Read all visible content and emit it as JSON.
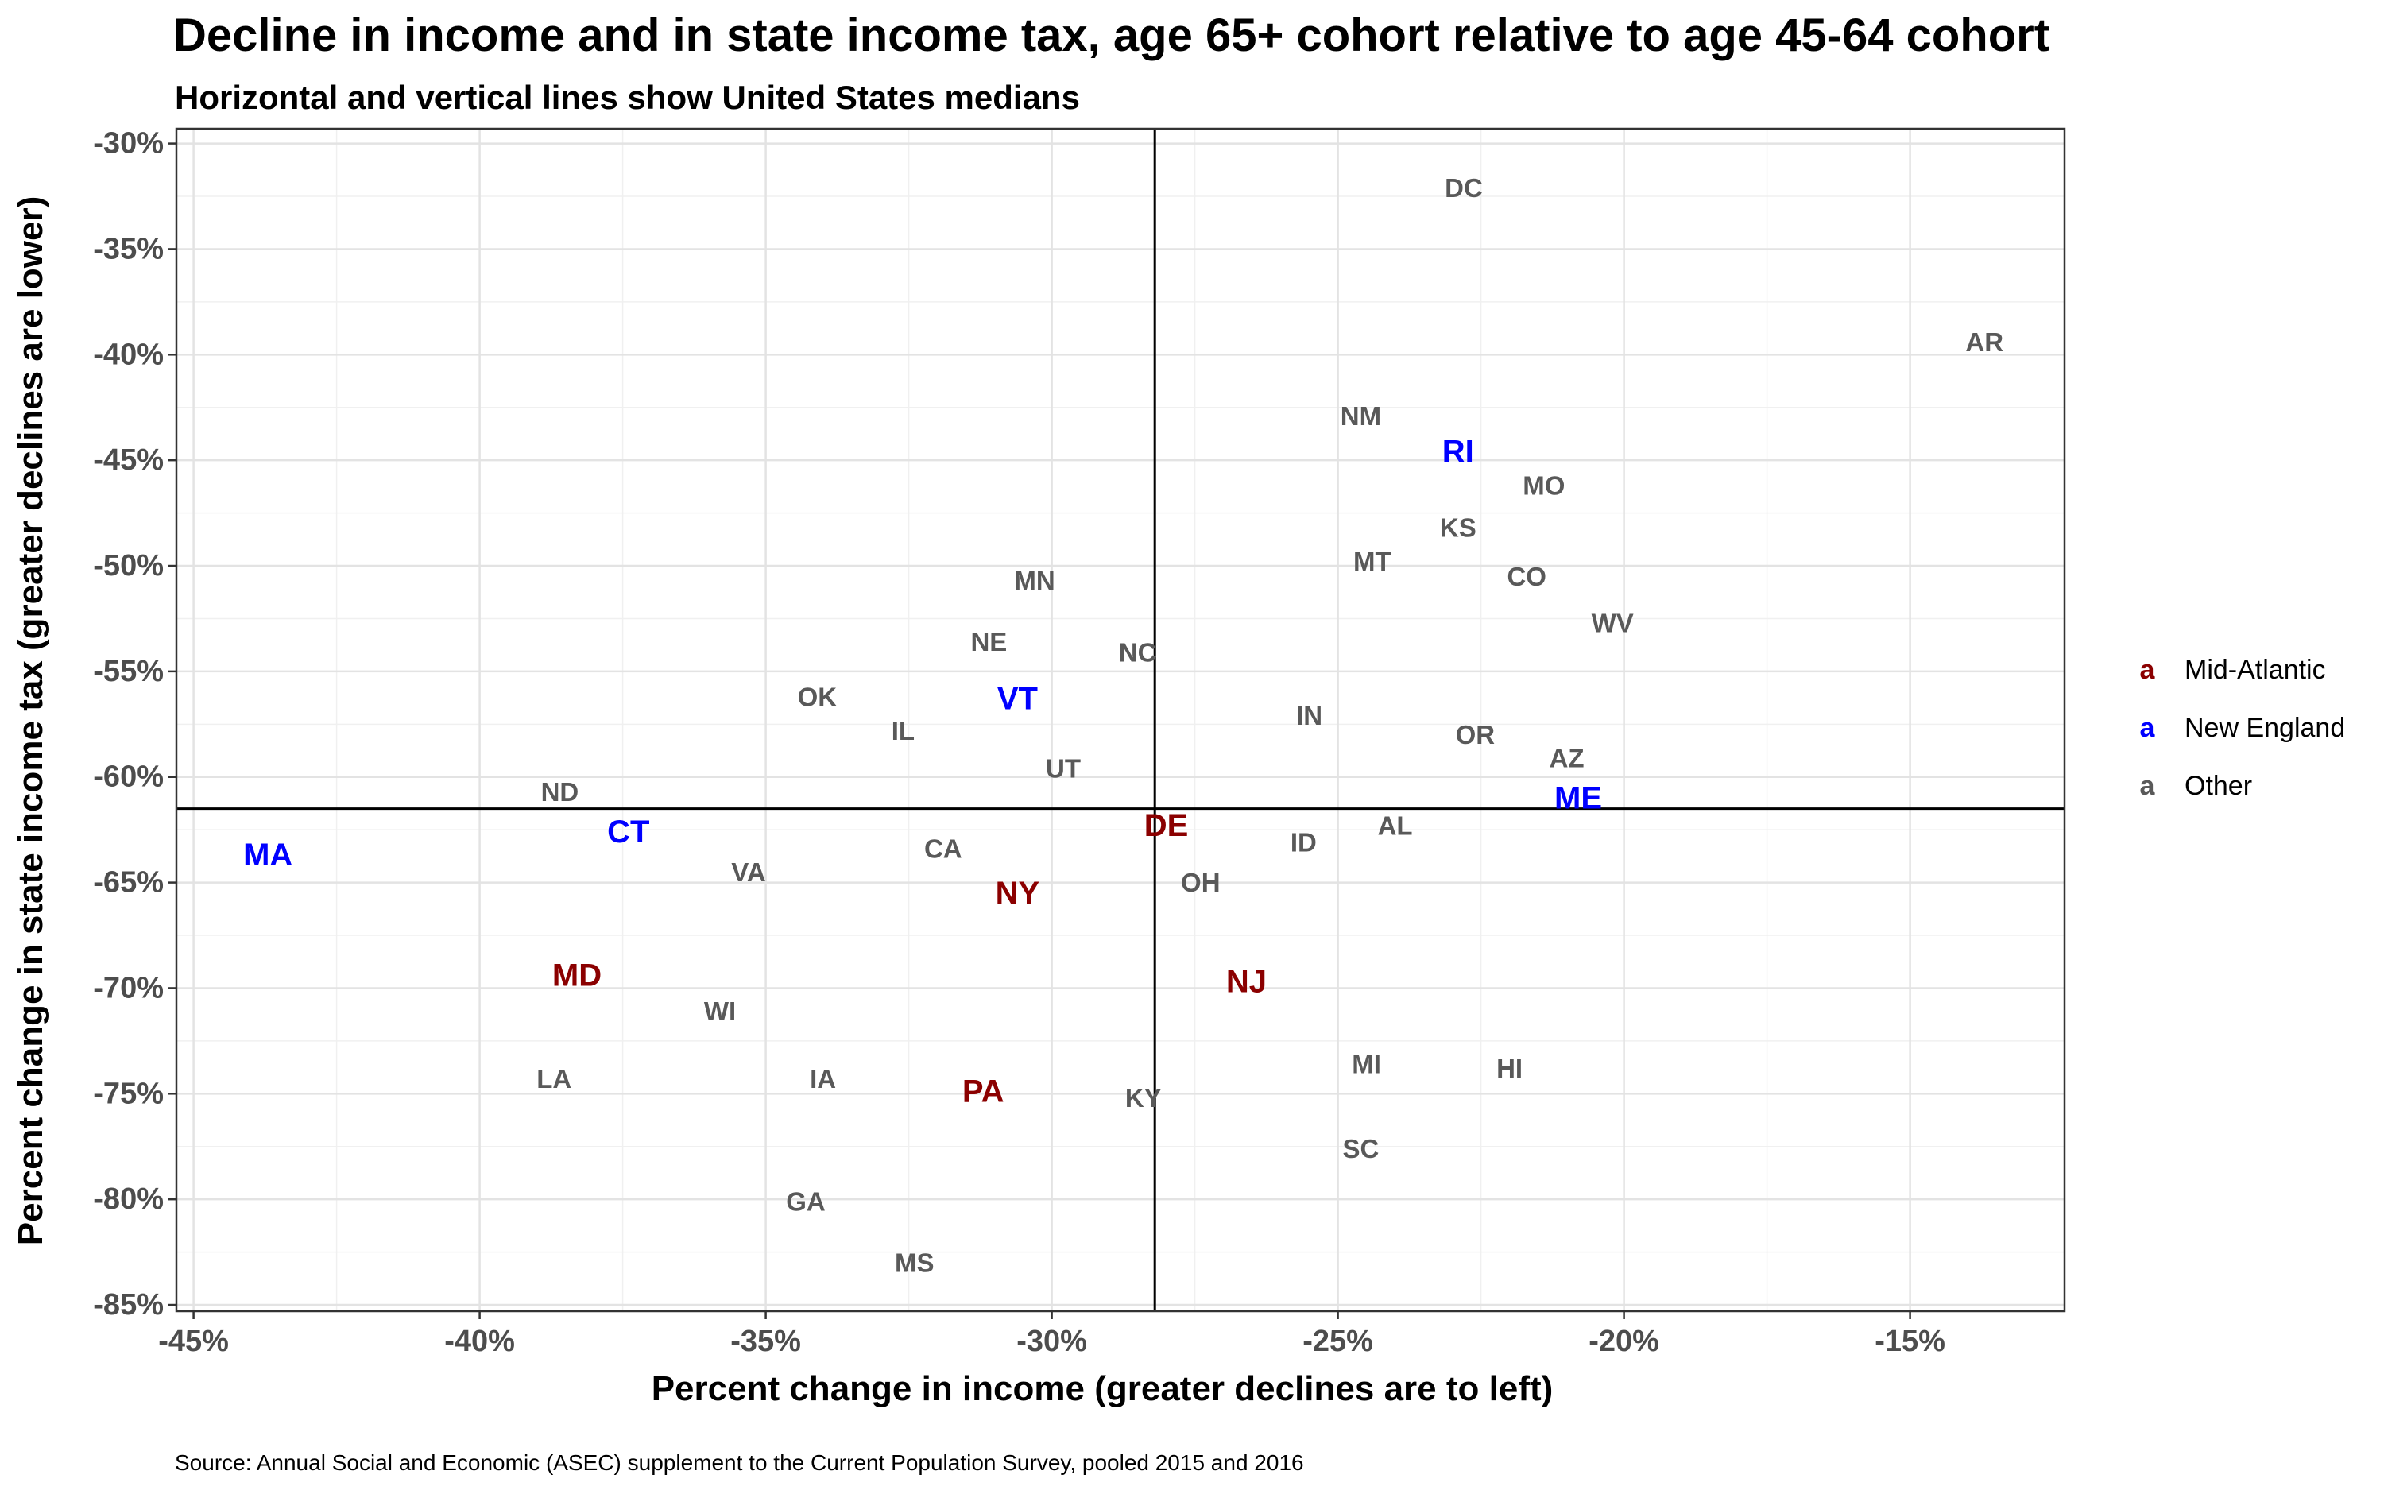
{
  "chart_data": {
    "type": "scatter",
    "title": "Decline in income and in state income tax, age 65+ cohort relative to age 45-64 cohort",
    "subtitle": "Horizontal and vertical lines show United States medians",
    "xlabel": "Percent change in income (greater declines are to left)",
    "ylabel": "Percent change in state income tax (greater declines are lower)",
    "caption": "Source: Annual Social and Economic (ASEC) supplement to the Current Population Survey, pooled 2015 and 2016",
    "xlim": [
      -45.3,
      -12.3
    ],
    "ylim": [
      -85.3,
      -29.3
    ],
    "x_ticks": [
      -45,
      -40,
      -35,
      -30,
      -25,
      -20,
      -15
    ],
    "x_tick_labels": [
      "-45%",
      "-40%",
      "-35%",
      "-30%",
      "-25%",
      "-20%",
      "-15%"
    ],
    "y_ticks": [
      -30,
      -35,
      -40,
      -45,
      -50,
      -55,
      -60,
      -65,
      -70,
      -75,
      -80,
      -85
    ],
    "y_tick_labels": [
      "-30%",
      "-35%",
      "-40%",
      "-45%",
      "-50%",
      "-55%",
      "-60%",
      "-65%",
      "-70%",
      "-75%",
      "-80%",
      "-85%"
    ],
    "grid": true,
    "median_x": -28.2,
    "median_y": -61.5,
    "legend_position": "right",
    "legend": [
      {
        "key": "a",
        "label": "Mid-Atlantic",
        "color": "#8b0000"
      },
      {
        "key": "a",
        "label": "New England",
        "color": "#0000ff"
      },
      {
        "key": "a",
        "label": "Other",
        "color": "#595959"
      }
    ],
    "points": [
      {
        "label": "DC",
        "x": -22.8,
        "y": -32.1,
        "group": "Other"
      },
      {
        "label": "AR",
        "x": -13.7,
        "y": -39.4,
        "group": "Other"
      },
      {
        "label": "NM",
        "x": -24.6,
        "y": -42.9,
        "group": "Other"
      },
      {
        "label": "RI",
        "x": -22.9,
        "y": -44.6,
        "group": "New England"
      },
      {
        "label": "MO",
        "x": -21.4,
        "y": -46.2,
        "group": "Other"
      },
      {
        "label": "KS",
        "x": -22.9,
        "y": -48.2,
        "group": "Other"
      },
      {
        "label": "MT",
        "x": -24.4,
        "y": -49.8,
        "group": "Other"
      },
      {
        "label": "CO",
        "x": -21.7,
        "y": -50.5,
        "group": "Other"
      },
      {
        "label": "WV",
        "x": -20.2,
        "y": -52.7,
        "group": "Other"
      },
      {
        "label": "MN",
        "x": -30.3,
        "y": -50.7,
        "group": "Other"
      },
      {
        "label": "NE",
        "x": -31.1,
        "y": -53.6,
        "group": "Other"
      },
      {
        "label": "NC",
        "x": -28.5,
        "y": -54.1,
        "group": "Other"
      },
      {
        "label": "OK",
        "x": -34.1,
        "y": -56.2,
        "group": "Other"
      },
      {
        "label": "VT",
        "x": -30.6,
        "y": -56.3,
        "group": "New England"
      },
      {
        "label": "IN",
        "x": -25.5,
        "y": -57.1,
        "group": "Other"
      },
      {
        "label": "IL",
        "x": -32.6,
        "y": -57.8,
        "group": "Other"
      },
      {
        "label": "OR",
        "x": -22.6,
        "y": -58.0,
        "group": "Other"
      },
      {
        "label": "AZ",
        "x": -21.0,
        "y": -59.1,
        "group": "Other"
      },
      {
        "label": "UT",
        "x": -29.8,
        "y": -59.6,
        "group": "Other"
      },
      {
        "label": "ND",
        "x": -38.6,
        "y": -60.7,
        "group": "Other"
      },
      {
        "label": "ME",
        "x": -20.8,
        "y": -61.0,
        "group": "New England"
      },
      {
        "label": "DE",
        "x": -28.0,
        "y": -62.3,
        "group": "Mid-Atlantic"
      },
      {
        "label": "AL",
        "x": -24.0,
        "y": -62.3,
        "group": "Other"
      },
      {
        "label": "CT",
        "x": -37.4,
        "y": -62.6,
        "group": "New England"
      },
      {
        "label": "ID",
        "x": -25.6,
        "y": -63.1,
        "group": "Other"
      },
      {
        "label": "CA",
        "x": -31.9,
        "y": -63.4,
        "group": "Other"
      },
      {
        "label": "MA",
        "x": -43.7,
        "y": -63.7,
        "group": "New England"
      },
      {
        "label": "VA",
        "x": -35.3,
        "y": -64.5,
        "group": "Other"
      },
      {
        "label": "OH",
        "x": -27.4,
        "y": -65.0,
        "group": "Other"
      },
      {
        "label": "NY",
        "x": -30.6,
        "y": -65.5,
        "group": "Mid-Atlantic"
      },
      {
        "label": "MD",
        "x": -38.3,
        "y": -69.4,
        "group": "Mid-Atlantic"
      },
      {
        "label": "NJ",
        "x": -26.6,
        "y": -69.7,
        "group": "Mid-Atlantic"
      },
      {
        "label": "WI",
        "x": -35.8,
        "y": -71.1,
        "group": "Other"
      },
      {
        "label": "MI",
        "x": -24.5,
        "y": -73.6,
        "group": "Other"
      },
      {
        "label": "HI",
        "x": -22.0,
        "y": -73.8,
        "group": "Other"
      },
      {
        "label": "LA",
        "x": -38.7,
        "y": -74.3,
        "group": "Other"
      },
      {
        "label": "IA",
        "x": -34.0,
        "y": -74.3,
        "group": "Other"
      },
      {
        "label": "PA",
        "x": -31.2,
        "y": -74.9,
        "group": "Mid-Atlantic"
      },
      {
        "label": "KY",
        "x": -28.4,
        "y": -75.2,
        "group": "Other"
      },
      {
        "label": "SC",
        "x": -24.6,
        "y": -77.6,
        "group": "Other"
      },
      {
        "label": "GA",
        "x": -34.3,
        "y": -80.1,
        "group": "Other"
      },
      {
        "label": "MS",
        "x": -32.4,
        "y": -83.0,
        "group": "Other"
      }
    ]
  }
}
